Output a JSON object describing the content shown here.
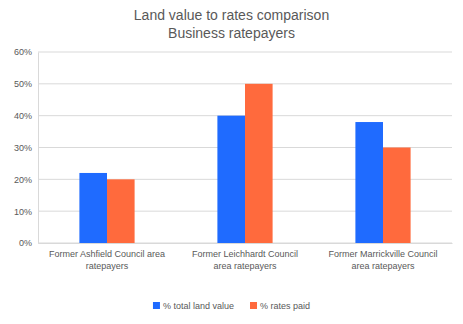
{
  "chart_data": {
    "type": "bar",
    "title": "Land value to rates comparison",
    "subtitle": "Business ratepayers",
    "categories": [
      "Former Ashfield Council area ratepayers",
      "Former Leichhardt Council area ratepayers",
      "Former Marrickville Council area ratepayers"
    ],
    "series": [
      {
        "name": "% total land value",
        "color": "#1f6bff",
        "values": [
          22,
          40,
          38
        ]
      },
      {
        "name": "% rates paid",
        "color": "#ff6a3d",
        "values": [
          20,
          50,
          30
        ]
      }
    ],
    "ylim": [
      0,
      60
    ],
    "yticks": [
      {
        "value": 0,
        "label": "0%"
      },
      {
        "value": 10,
        "label": "10%"
      },
      {
        "value": 20,
        "label": "20%"
      },
      {
        "value": 30,
        "label": "30%"
      },
      {
        "value": 40,
        "label": "40%"
      },
      {
        "value": 50,
        "label": "50%"
      },
      {
        "value": 60,
        "label": "60%"
      }
    ],
    "grid": true,
    "legend": "bottom"
  }
}
